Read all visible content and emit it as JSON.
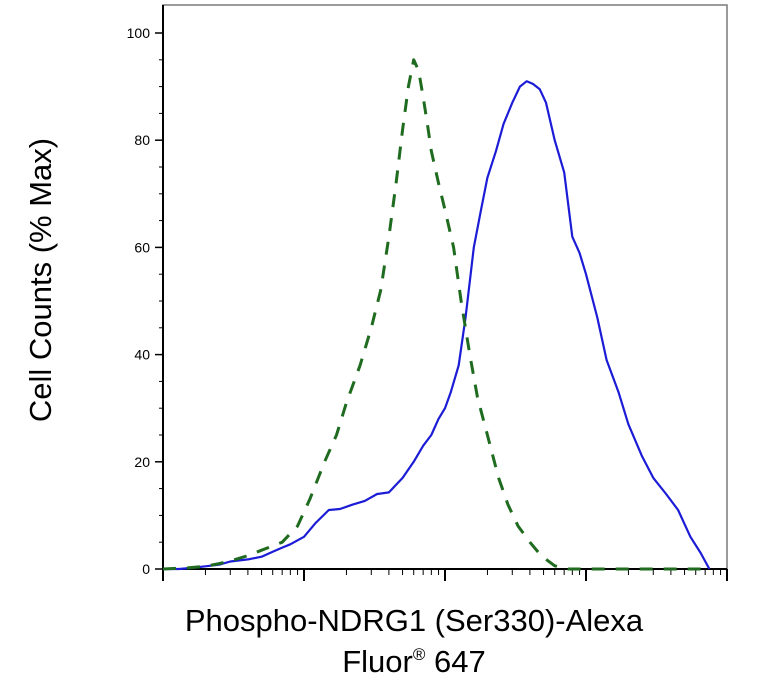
{
  "chart_data": {
    "type": "line",
    "xlabel_line1": "Phospho-NDRG1 (Ser330)-Alexa",
    "xlabel_line2": "Fluor",
    "xlabel_sup": "®",
    "xlabel_line2_end": " 647",
    "ylabel": "Cell Counts (% Max)",
    "ylim": [
      0,
      100
    ],
    "yticks": [
      0,
      20,
      40,
      60,
      80,
      100
    ],
    "ytick_labels": [
      "0",
      "20",
      "40",
      "60",
      "80",
      "100"
    ],
    "xscale": "log",
    "xlim": [
      1,
      10000
    ],
    "xtick_labels": [],
    "grid": false,
    "series": [
      {
        "style": "solid",
        "color": "#1c1cd6",
        "x": [
          1,
          1.3,
          1.6,
          2,
          2.5,
          3,
          4,
          5,
          6,
          7,
          8,
          10,
          12,
          15,
          18,
          22,
          27,
          33,
          40,
          50,
          60,
          70,
          80,
          90,
          100,
          110,
          125,
          140,
          160,
          180,
          200,
          230,
          260,
          300,
          340,
          380,
          420,
          470,
          520,
          600,
          700,
          800,
          900,
          1000,
          1200,
          1400,
          1700,
          2000,
          2500,
          3000,
          3700,
          4500,
          5500,
          6500,
          7500
        ],
        "values": [
          0,
          0,
          0.2,
          0.5,
          0.8,
          1.4,
          1.8,
          2.3,
          3.2,
          4,
          4.6,
          6,
          8.5,
          11,
          11.2,
          12,
          12.7,
          14,
          14.3,
          17,
          20,
          23,
          25,
          28,
          30,
          33,
          38,
          47,
          60,
          67,
          73,
          78,
          83,
          87,
          90,
          91,
          90.5,
          89.5,
          87,
          80,
          74,
          62,
          59,
          55,
          47,
          39,
          33,
          27,
          21,
          17,
          14,
          11,
          6,
          3,
          0
        ]
      },
      {
        "style": "dashed",
        "color": "#1f6b1f",
        "x": [
          1,
          1.5,
          2,
          2.5,
          3,
          4,
          5,
          7,
          9,
          11,
          14,
          17,
          20,
          25,
          30,
          35,
          40,
          45,
          50,
          55,
          60,
          65,
          70,
          75,
          80,
          90,
          100,
          115,
          130,
          150,
          170,
          200,
          240,
          280,
          330,
          400,
          480,
          600,
          750,
          900,
          1100,
          1400,
          2000,
          3000,
          5000,
          7500
        ],
        "values": [
          0,
          0.2,
          0.5,
          1,
          1.5,
          2.5,
          3.5,
          5,
          8,
          13,
          20,
          25,
          31,
          38,
          45,
          52,
          62,
          72,
          82,
          90,
          95,
          93,
          88,
          83,
          78,
          72,
          67,
          60,
          50,
          40,
          32,
          25,
          17,
          12,
          8,
          5,
          2.5,
          0.6,
          0,
          0,
          0,
          0,
          0,
          0,
          0,
          0
        ]
      }
    ]
  }
}
